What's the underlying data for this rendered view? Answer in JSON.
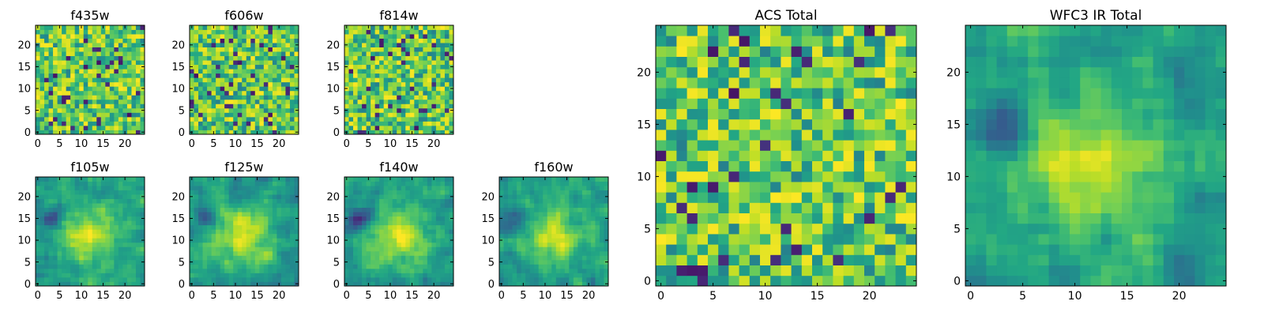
{
  "figure": {
    "panel_count": 9
  },
  "chart_data": [
    {
      "type": "heatmap",
      "title": "f435w",
      "xlim": [
        -0.5,
        24.5
      ],
      "ylim": [
        -0.5,
        24.5
      ],
      "xticks": [
        0,
        5,
        10,
        15,
        20
      ],
      "yticks": [
        0,
        5,
        10,
        15,
        20
      ],
      "grid": false,
      "colormap": "viridis",
      "pattern": "uniform-noise",
      "seed": 11,
      "description": "25x25 pixel map, noisy, mostly green-yellow with scattered dark pixels"
    },
    {
      "type": "heatmap",
      "title": "f606w",
      "xlim": [
        -0.5,
        24.5
      ],
      "ylim": [
        -0.5,
        24.5
      ],
      "xticks": [
        0,
        5,
        10,
        15,
        20
      ],
      "yticks": [
        0,
        5,
        10,
        15,
        20
      ],
      "grid": false,
      "colormap": "viridis",
      "pattern": "uniform-noise",
      "seed": 23
    },
    {
      "type": "heatmap",
      "title": "f814w",
      "xlim": [
        -0.5,
        24.5
      ],
      "ylim": [
        -0.5,
        24.5
      ],
      "xticks": [
        0,
        5,
        10,
        15,
        20
      ],
      "yticks": [
        0,
        5,
        10,
        15,
        20
      ],
      "grid": false,
      "colormap": "viridis",
      "pattern": "uniform-noise",
      "seed": 37
    },
    {
      "type": "heatmap",
      "title": "f105w",
      "xlim": [
        -0.5,
        24.5
      ],
      "ylim": [
        -0.5,
        24.5
      ],
      "xticks": [
        0,
        5,
        10,
        15,
        20
      ],
      "yticks": [
        0,
        5,
        10,
        15,
        20
      ],
      "grid": false,
      "colormap": "viridis",
      "pattern": "central-source",
      "seed": 41
    },
    {
      "type": "heatmap",
      "title": "f125w",
      "xlim": [
        -0.5,
        24.5
      ],
      "ylim": [
        -0.5,
        24.5
      ],
      "xticks": [
        0,
        5,
        10,
        15,
        20
      ],
      "yticks": [
        0,
        5,
        10,
        15,
        20
      ],
      "grid": false,
      "colormap": "viridis",
      "pattern": "central-source",
      "seed": 53
    },
    {
      "type": "heatmap",
      "title": "f140w",
      "xlim": [
        -0.5,
        24.5
      ],
      "ylim": [
        -0.5,
        24.5
      ],
      "xticks": [
        0,
        5,
        10,
        15,
        20
      ],
      "yticks": [
        0,
        5,
        10,
        15,
        20
      ],
      "grid": false,
      "colormap": "viridis",
      "pattern": "central-source",
      "seed": 67
    },
    {
      "type": "heatmap",
      "title": "f160w",
      "xlim": [
        -0.5,
        24.5
      ],
      "ylim": [
        -0.5,
        24.5
      ],
      "xticks": [
        0,
        5,
        10,
        15,
        20
      ],
      "yticks": [
        0,
        5,
        10,
        15,
        20
      ],
      "grid": false,
      "colormap": "viridis",
      "pattern": "central-source",
      "seed": 79
    },
    {
      "type": "heatmap",
      "title": "ACS Total",
      "xlim": [
        -0.5,
        24.5
      ],
      "ylim": [
        -0.5,
        24.5
      ],
      "xticks": [
        0,
        5,
        10,
        15,
        20
      ],
      "yticks": [
        0,
        5,
        10,
        15,
        20
      ],
      "grid": false,
      "colormap": "viridis",
      "pattern": "uniform-noise",
      "seed": 97
    },
    {
      "type": "heatmap",
      "title": "WFC3 IR Total",
      "xlim": [
        -0.5,
        24.5
      ],
      "ylim": [
        -0.5,
        24.5
      ],
      "xticks": [
        0,
        5,
        10,
        15,
        20
      ],
      "yticks": [
        0,
        5,
        10,
        15,
        20
      ],
      "grid": false,
      "colormap": "viridis",
      "pattern": "central-source",
      "seed": 131
    }
  ]
}
